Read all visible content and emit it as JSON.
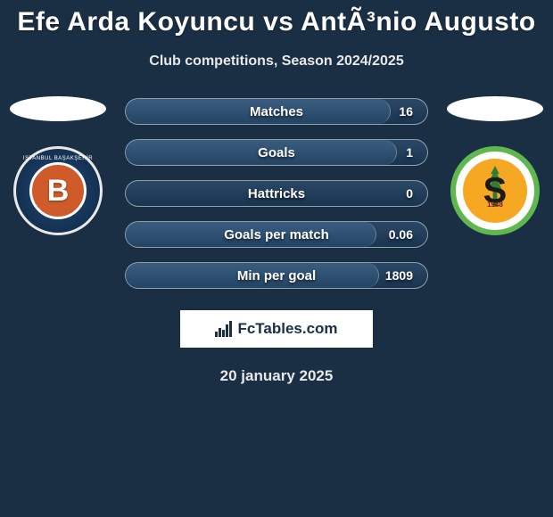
{
  "title": "Efe Arda Koyuncu vs AntÃ³nio Augusto",
  "subtitle": "Club competitions, Season 2024/2025",
  "date": "20 january 2025",
  "fctables_label": "FcTables.com",
  "colors": {
    "background": "#1a2e44",
    "bar_border": "rgba(255,255,255,0.5)",
    "bar_bg_top": "#2a4866",
    "bar_bg_bottom": "#1a3450",
    "bar_fill_top": "#3a5d80",
    "bar_fill_bottom": "#244464",
    "text": "#ffffff"
  },
  "left_club": {
    "name": "Istanbul Basaksehir",
    "letter": "B",
    "top_text": "ISTANBUL BAŞAKŞEHİR",
    "badge_outer": "#17365a",
    "badge_inner": "#cf5a2a"
  },
  "right_club": {
    "name": "Alanyaspor",
    "letter": "S",
    "year": "1948",
    "ring_color": "#5fb84f",
    "inner_color": "#f7a823"
  },
  "stats": [
    {
      "label": "Matches",
      "value": "16",
      "fill_pct": 88
    },
    {
      "label": "Goals",
      "value": "1",
      "fill_pct": 90
    },
    {
      "label": "Hattricks",
      "value": "0",
      "fill_pct": 0
    },
    {
      "label": "Goals per match",
      "value": "0.06",
      "fill_pct": 83
    },
    {
      "label": "Min per goal",
      "value": "1809",
      "fill_pct": 84
    }
  ]
}
